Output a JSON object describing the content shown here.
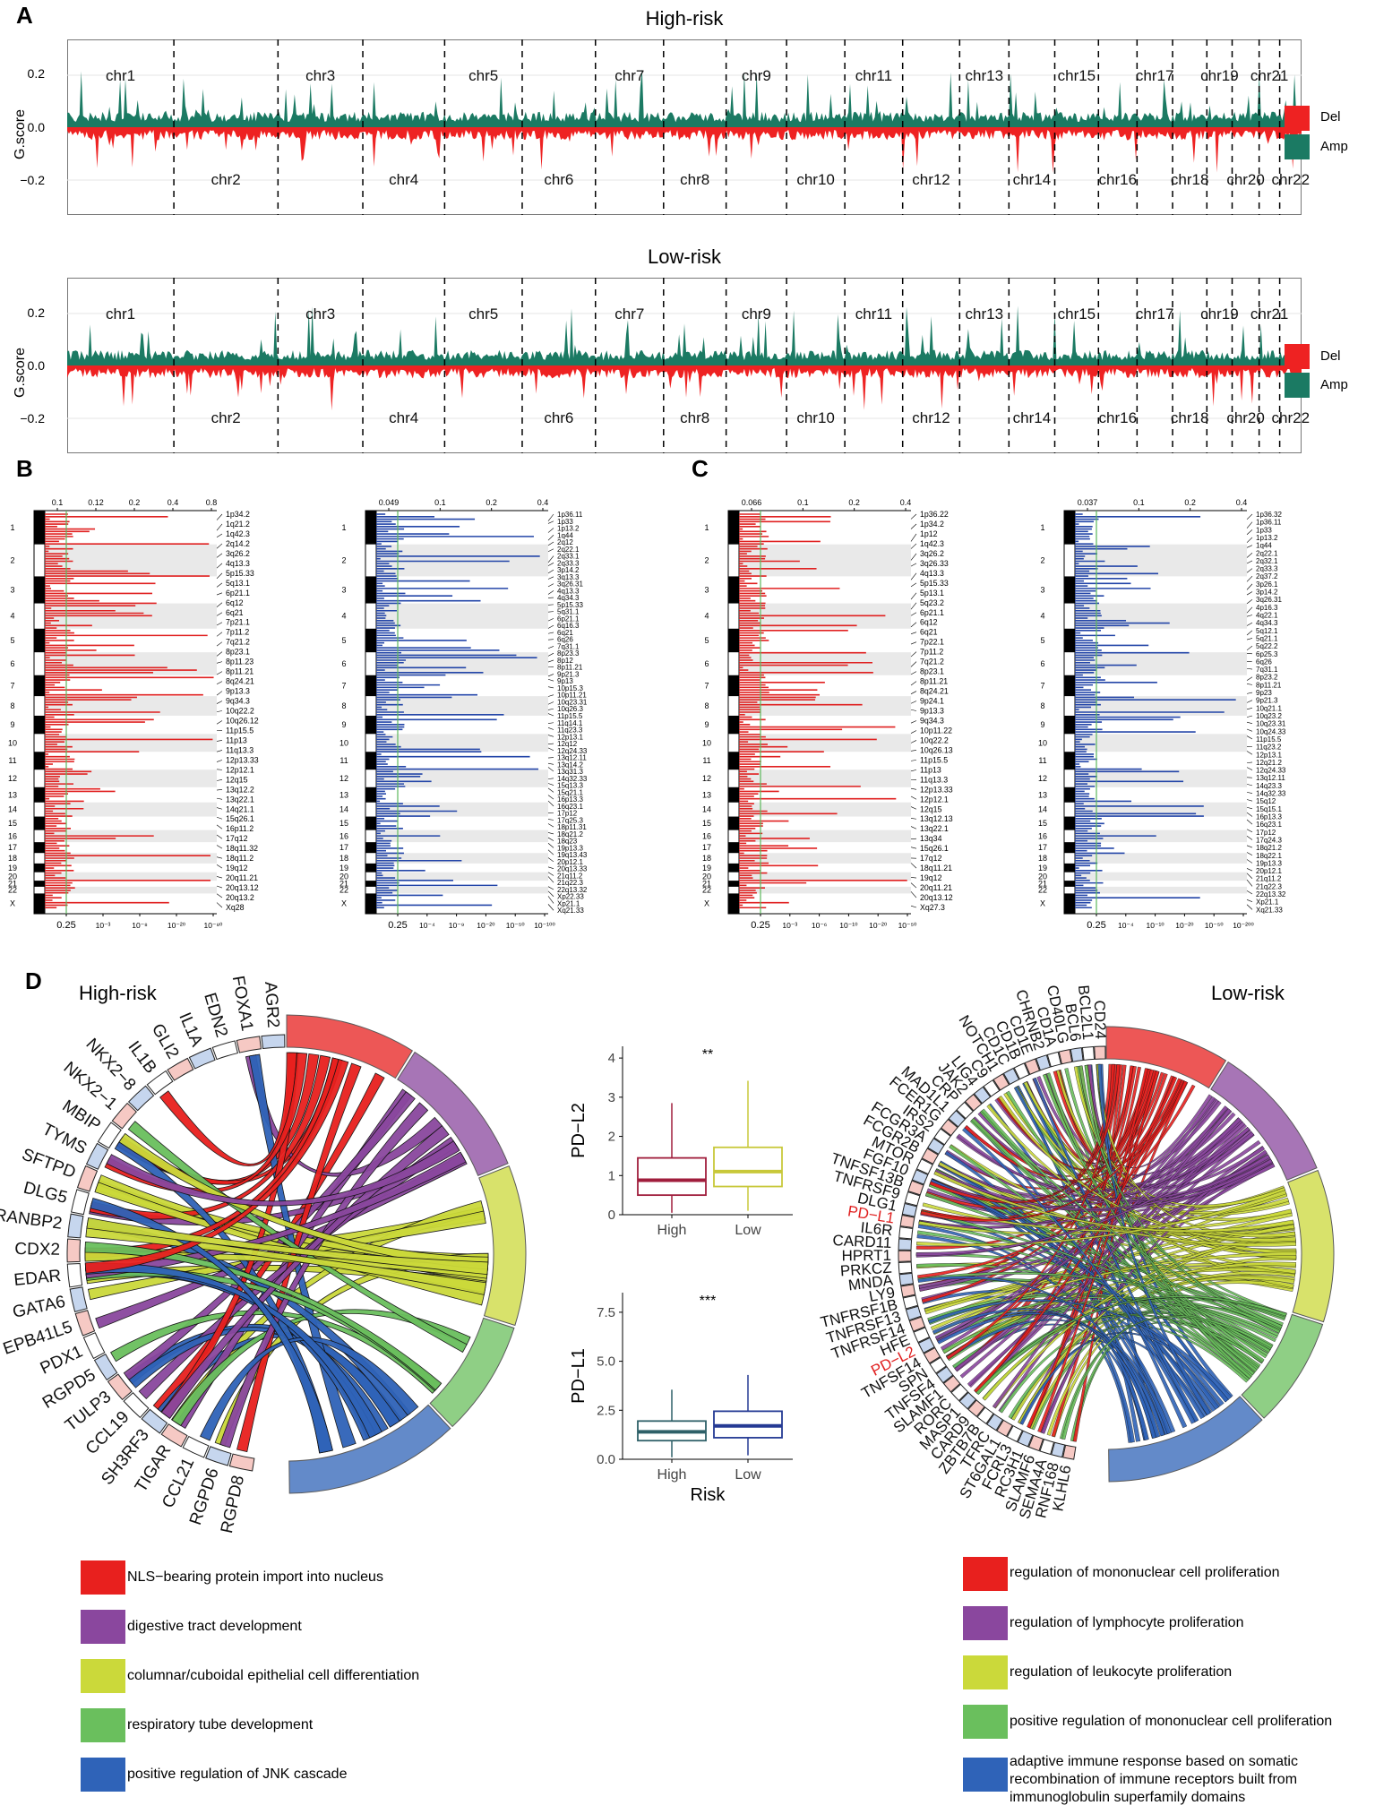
{
  "panels": {
    "A": "A",
    "B": "B",
    "C": "C",
    "D": "D"
  },
  "gistic": [
    {
      "title": "High-risk"
    },
    {
      "title": "Low-risk"
    }
  ],
  "gistic_common": {
    "ylabel": "G.score",
    "yticks": [
      "0.2",
      "0.0",
      "−0.2"
    ],
    "chrs_top": [
      "chr1",
      "chr3",
      "chr5",
      "chr7",
      "chr9",
      "chr11",
      "chr13",
      "chr15",
      "chr17",
      "chr19",
      "chr21"
    ],
    "chrs_bottom": [
      "chr2",
      "chr4",
      "chr6",
      "chr8",
      "chr10",
      "chr12",
      "chr14",
      "chr16",
      "chr18",
      "chr20",
      "chr22"
    ],
    "legend": [
      {
        "label": "Del",
        "color": "#ee2222"
      },
      {
        "label": "Amp",
        "color": "#1b7a63"
      }
    ]
  },
  "cyto_panels": [
    {
      "top_ticks": [
        "0.1",
        "0.12",
        "0.2",
        "0.4",
        "0.8"
      ],
      "bottom_ticks": [
        "0.25",
        "10⁻³",
        "10⁻⁸",
        "10⁻²⁰",
        "10⁻⁸⁰"
      ],
      "color": "#e02020",
      "labels": [
        "1p34.2",
        "1q21.2",
        "1q42.3",
        "2q14.2",
        "3q26.2",
        "4q13.3",
        "5p15.33",
        "5q13.1",
        "6p21.1",
        "6q12",
        "6q21",
        "7p21.1",
        "7p11.2",
        "7q21.2",
        "8p23.1",
        "8p11.23",
        "8p11.21",
        "8q24.21",
        "9p13.3",
        "9q34.3",
        "10q22.2",
        "10q26.12",
        "11p15.5",
        "11p13",
        "11q13.3",
        "12p13.33",
        "12p12.1",
        "12q15",
        "13q12.2",
        "13q22.1",
        "14q21.1",
        "15q26.1",
        "16p11.2",
        "17q12",
        "18q11.32",
        "18q11.2",
        "19q12",
        "20q11.21",
        "20q13.12",
        "20q13.2",
        "Xq28"
      ]
    },
    {
      "top_ticks": [
        "0.049",
        "0.1",
        "0.2",
        "0.4"
      ],
      "bottom_ticks": [
        "0.25",
        "10⁻⁴",
        "10⁻⁹",
        "10⁻²⁰",
        "10⁻⁵⁰",
        "10⁻¹⁰⁰"
      ],
      "color": "#2345a8",
      "labels": [
        "1p36.11",
        "1p33",
        "1p13.2",
        "1q44",
        "2q12",
        "2q22.1",
        "2q33.1",
        "2q33.3",
        "3p14.2",
        "3q13.3",
        "3q26.31",
        "4q13.3",
        "4q34.3",
        "5p15.33",
        "5q31.1",
        "6p21.1",
        "6q16.3",
        "6q21",
        "6q26",
        "7q31.1",
        "8p23.3",
        "8p12",
        "8p11.21",
        "9p21.3",
        "9p13",
        "10p15.3",
        "10p11.21",
        "10q23.31",
        "10q26.3",
        "11p15.5",
        "11q14.1",
        "11q23.3",
        "12p13.1",
        "12q12",
        "12q24.33",
        "13q12.11",
        "13q14.2",
        "13q31.3",
        "14q32.33",
        "15q13.3",
        "15q21.1",
        "16p13.3",
        "16q23.1",
        "17p12",
        "17q25.3",
        "18p11.31",
        "18q21.2",
        "18q23",
        "19p13.3",
        "19q13.43",
        "20p12.1",
        "20q13.33",
        "21q11.2",
        "21q22.3",
        "22q13.32",
        "Xp22.33",
        "Xp21.1",
        "Xq21.33"
      ]
    },
    {
      "top_ticks": [
        "0.066",
        "0.1",
        "0.2",
        "0.4"
      ],
      "bottom_ticks": [
        "0.25",
        "10⁻³",
        "10⁻⁶",
        "10⁻¹⁰",
        "10⁻²⁰",
        "10⁻⁵⁰"
      ],
      "color": "#e02020",
      "labels": [
        "1p36.22",
        "1p34.2",
        "1p12",
        "1q42.3",
        "3q26.2",
        "3q26.33",
        "4q13.3",
        "5p15.33",
        "5p13.1",
        "5q23.2",
        "6p21.1",
        "6q12",
        "6q21",
        "7p22.1",
        "7p11.2",
        "7q21.2",
        "8p23.1",
        "8p11.21",
        "8q24.21",
        "9p24.1",
        "9p13.3",
        "9q34.3",
        "10p11.22",
        "10q22.2",
        "10q26.13",
        "11p15.5",
        "11p13",
        "11q13.3",
        "12p13.33",
        "12p12.1",
        "12q15",
        "13q12.13",
        "13q22.1",
        "13q34",
        "15q26.1",
        "17q12",
        "18q11.21",
        "19q12",
        "20q11.21",
        "20q13.12",
        "Xq27.3"
      ]
    },
    {
      "top_ticks": [
        "0.037",
        "0.1",
        "0.2",
        "0.4"
      ],
      "bottom_ticks": [
        "0.25",
        "10⁻⁴",
        "10⁻¹⁰",
        "10⁻²⁰",
        "10⁻⁵⁰",
        "10⁻²⁰⁰"
      ],
      "color": "#2345a8",
      "labels": [
        "1p36.32",
        "1p36.11",
        "1p33",
        "1p13.2",
        "1q44",
        "2q22.1",
        "2q32.1",
        "2q33.3",
        "2q37.2",
        "3p26.1",
        "3p14.2",
        "3q26.31",
        "4p16.3",
        "4q22.1",
        "4q34.3",
        "5q12.1",
        "5q21.1",
        "5q22.2",
        "6p25.3",
        "6q26",
        "7q31.1",
        "8p23.2",
        "8p11.21",
        "9p23",
        "9p21.3",
        "10q21.1",
        "10q23.2",
        "10q23.31",
        "10q24.33",
        "11p15.5",
        "11q23.2",
        "12p13.1",
        "12q21.2",
        "12q24.33",
        "13q12.11",
        "14q23.3",
        "14q32.33",
        "15q12",
        "15q15.1",
        "16p13.3",
        "16q23.1",
        "17p12",
        "17q24.3",
        "18q21.2",
        "18q22.1",
        "19p13.3",
        "20p12.1",
        "21q11.2",
        "21q22.3",
        "22q13.32",
        "Xp21.1",
        "Xq21.33"
      ]
    }
  ],
  "cyto_chroms": [
    "1",
    "2",
    "3",
    "4",
    "5",
    "6",
    "7",
    "8",
    "9",
    "10",
    "11",
    "12",
    "13",
    "14",
    "15",
    "16",
    "17",
    "18",
    "19",
    "20",
    "21",
    "22",
    "X"
  ],
  "chord_high": {
    "title": "High-risk",
    "genes": [
      "RGPD8",
      "RGPD6",
      "CCL21",
      "TIGAR",
      "SH3RF3",
      "CCL19",
      "TULP3",
      "RGPD5",
      "PDX1",
      "EPB41L5",
      "GATA6",
      "EDAR",
      "CDX2",
      "RANBP2",
      "DLG5",
      "SFTPD",
      "TYMS",
      "MBIP",
      "NKX2−1",
      "NKX2−8",
      "IL1B",
      "GLI2",
      "IL1A",
      "EDN2",
      "FOXA1",
      "AGR2"
    ]
  },
  "chord_low": {
    "title": "Low-risk",
    "genes": [
      "KLHL6",
      "RNF168",
      "SEMA4A",
      "SLAMF6",
      "RC3H1",
      "FCRL3",
      "ST6GAL1",
      "TFRC",
      "ZBTB7B",
      "CARD9",
      "MASP1",
      "RORC",
      "SLAMF1",
      "TNFSF4",
      "SPN",
      "TNFSF14",
      "PD−L2",
      "HFE",
      "TNFRSF14",
      "TNFRSF13",
      "TNFRSF1B",
      "LY9",
      "MNDA",
      "PRKCZ",
      "HPRT1",
      "CARD11",
      "IL6R",
      "PD−L1",
      "DLG1",
      "TNFRSF9",
      "TNFSF13B",
      "FGF10",
      "MTOR",
      "FCGR2B",
      "FCGR3A",
      "IRS2",
      "FCER1G",
      "MAD1L1",
      "CRP",
      "JAK2",
      "LIG4",
      "C9",
      "NOTCH1",
      "CD1C",
      "CD1B",
      "CD1E",
      "CHRNB2",
      "CD1A",
      "CD40LG",
      "BCL6",
      "BCL2L1",
      "CD24"
    ],
    "highlight": [
      "PD−L2",
      "PD−L1"
    ]
  },
  "box_pdl2": {
    "ylabel": "PD−L2",
    "sig": "**",
    "yticks": [
      "0",
      "1",
      "2",
      "3",
      "4"
    ],
    "xticks": [
      "High",
      "Low"
    ],
    "high": {
      "min": 0.05,
      "q1": 0.5,
      "median": 0.88,
      "q3": 1.45,
      "max": 2.85,
      "color": "#a01d3c"
    },
    "low": {
      "min": 0.1,
      "q1": 0.72,
      "median": 1.1,
      "q3": 1.72,
      "max": 3.42,
      "color": "#c8c83a"
    }
  },
  "box_pdl1": {
    "ylabel": "PD−L1",
    "sig": "***",
    "yticks": [
      "0.0",
      "2.5",
      "5.0",
      "7.5"
    ],
    "xticks": [
      "High",
      "Low"
    ],
    "xlabel": "Risk",
    "high": {
      "min": 0.1,
      "q1": 0.95,
      "median": 1.4,
      "q3": 1.95,
      "max": 3.55,
      "color": "#2e6068"
    },
    "low": {
      "min": 0.2,
      "q1": 1.1,
      "median": 1.7,
      "q3": 2.45,
      "max": 4.3,
      "color": "#253a94"
    }
  },
  "go_left": [
    {
      "label": "NLS−bearing protein import into nucleus",
      "color": "#e8201e"
    },
    {
      "label": "digestive tract development",
      "color": "#8a479e"
    },
    {
      "label": "columnar/cuboidal epithelial cell differentiation",
      "color": "#cbd93a"
    },
    {
      "label": "respiratory tube development",
      "color": "#6abf5d"
    },
    {
      "label": "positive regulation of JNK cascade",
      "color": "#2f63b8"
    }
  ],
  "go_right": [
    {
      "label": "regulation of mononuclear cell proliferation",
      "color": "#e8201e"
    },
    {
      "label": "regulation of lymphocyte proliferation",
      "color": "#8a479e"
    },
    {
      "label": "regulation of leukocyte proliferation",
      "color": "#cbd93a"
    },
    {
      "label": "positive regulation of mononuclear cell proliferation",
      "color": "#6abf5d"
    },
    {
      "label": "adaptive immune response based on somatic recombination of immune receptors built from immunoglobulin superfamily domains",
      "color": "#2f63b8"
    }
  ]
}
